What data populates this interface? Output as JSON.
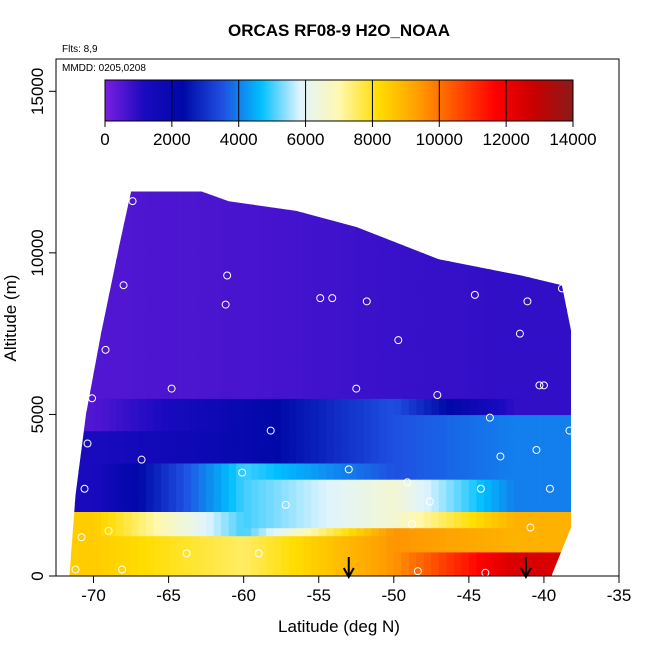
{
  "chart_data": {
    "type": "heatmap",
    "title": "ORCAS RF08-9 H2O_NOAA",
    "subtitle_flights": "Flts: 8,9",
    "subtitle_dates": "MMDD: 0205,0208",
    "xlabel": "Latitude (deg N)",
    "ylabel": "Altitude (m)",
    "xlim": [
      -72.5,
      -35
    ],
    "ylim": [
      0,
      16000
    ],
    "x_ticks": [
      -70,
      -65,
      -60,
      -55,
      -50,
      -45,
      -40,
      -35
    ],
    "y_ticks": [
      0,
      5000,
      10000,
      15000
    ],
    "colorbar": {
      "range": [
        0,
        14000
      ],
      "ticks": [
        0,
        2000,
        4000,
        6000,
        8000,
        10000,
        12000,
        14000
      ],
      "boundaries": [
        2000,
        4000,
        6000,
        8000,
        10000,
        12000,
        14000
      ],
      "colors": [
        "#7B1FE0",
        "#1A0ABF",
        "#0008A8",
        "#1F4FE0",
        "#00BFFF",
        "#E0F4FF",
        "#FFF8B0",
        "#FFDD00",
        "#FFA000",
        "#FF5000",
        "#FF0000",
        "#C80000",
        "#8B1A1A"
      ]
    },
    "field_samples": [
      {
        "lat": -70,
        "bands": [
          [
            0,
            2000,
            8500
          ],
          [
            2000,
            4500,
            1200
          ],
          [
            4500,
            12000,
            500
          ]
        ]
      },
      {
        "lat": -60,
        "bands": [
          [
            0,
            1200,
            7500
          ],
          [
            1200,
            3500,
            5000
          ],
          [
            3500,
            5500,
            2000
          ],
          [
            5500,
            12000,
            600
          ]
        ]
      },
      {
        "lat": -50,
        "bands": [
          [
            0,
            1500,
            9500
          ],
          [
            1500,
            3000,
            6500
          ],
          [
            3000,
            5500,
            3500
          ],
          [
            5500,
            10500,
            800
          ]
        ]
      },
      {
        "lat": -42,
        "bands": [
          [
            0,
            700,
            12500
          ],
          [
            700,
            2000,
            9000
          ],
          [
            2000,
            5000,
            4000
          ],
          [
            5000,
            9000,
            900
          ]
        ]
      }
    ],
    "sample_points": [
      {
        "lat": -71.2,
        "alt": 200
      },
      {
        "lat": -70.8,
        "alt": 1200
      },
      {
        "lat": -70.6,
        "alt": 2700
      },
      {
        "lat": -70.4,
        "alt": 4100
      },
      {
        "lat": -70.1,
        "alt": 5500
      },
      {
        "lat": -69.2,
        "alt": 7000
      },
      {
        "lat": -68.0,
        "alt": 9000
      },
      {
        "lat": -67.4,
        "alt": 11600
      },
      {
        "lat": -69.0,
        "alt": 1400
      },
      {
        "lat": -68.1,
        "alt": 200
      },
      {
        "lat": -66.8,
        "alt": 3600
      },
      {
        "lat": -64.8,
        "alt": 5800
      },
      {
        "lat": -63.8,
        "alt": 700
      },
      {
        "lat": -61.2,
        "alt": 8400
      },
      {
        "lat": -61.1,
        "alt": 9300
      },
      {
        "lat": -60.1,
        "alt": 3200
      },
      {
        "lat": -59.0,
        "alt": 700
      },
      {
        "lat": -58.2,
        "alt": 4500
      },
      {
        "lat": -57.2,
        "alt": 2200
      },
      {
        "lat": -54.9,
        "alt": 8600
      },
      {
        "lat": -54.1,
        "alt": 8600
      },
      {
        "lat": -53.0,
        "alt": 3300
      },
      {
        "lat": -52.5,
        "alt": 5800
      },
      {
        "lat": -51.8,
        "alt": 8500
      },
      {
        "lat": -49.7,
        "alt": 7300
      },
      {
        "lat": -49.1,
        "alt": 2900
      },
      {
        "lat": -48.8,
        "alt": 1600
      },
      {
        "lat": -48.4,
        "alt": 150
      },
      {
        "lat": -47.6,
        "alt": 2300
      },
      {
        "lat": -47.1,
        "alt": 5600
      },
      {
        "lat": -44.6,
        "alt": 8700
      },
      {
        "lat": -44.2,
        "alt": 2700
      },
      {
        "lat": -43.9,
        "alt": 100
      },
      {
        "lat": -43.6,
        "alt": 4900
      },
      {
        "lat": -42.9,
        "alt": 3700
      },
      {
        "lat": -41.6,
        "alt": 7500
      },
      {
        "lat": -41.1,
        "alt": 8500
      },
      {
        "lat": -40.9,
        "alt": 1500
      },
      {
        "lat": -40.5,
        "alt": 3900
      },
      {
        "lat": -40.3,
        "alt": 5900
      },
      {
        "lat": -40.0,
        "alt": 5900
      },
      {
        "lat": -39.6,
        "alt": 2700
      },
      {
        "lat": -38.9,
        "alt": 150
      },
      {
        "lat": -38.8,
        "alt": 8900
      },
      {
        "lat": -38.3,
        "alt": 4500
      }
    ],
    "markers": [
      {
        "lat": -53.0
      },
      {
        "lat": -41.2
      }
    ]
  }
}
